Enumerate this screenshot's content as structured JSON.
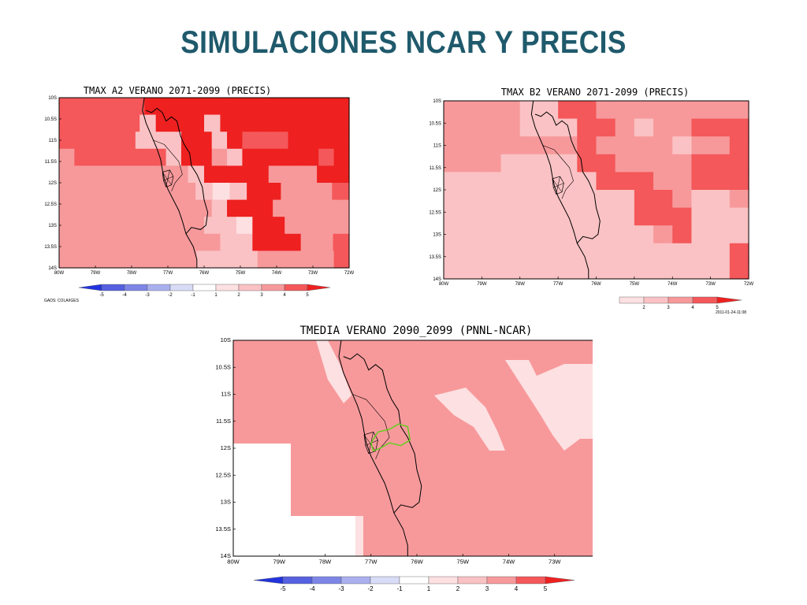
{
  "slide": {
    "title": "SIMULACIONES  NCAR Y PRECIS"
  },
  "colors": {
    "c5": "#ee2020",
    "c4": "#f4585a",
    "c3": "#f7999b",
    "c2": "#fac2c4",
    "c1": "#fde0e1",
    "c0": "#ffffff",
    "n1": "#d8dcf6",
    "n2": "#aab0ee",
    "n3": "#7d86e6",
    "n4": "#5561e0",
    "n5": "#2233dd",
    "title": "#1f5a6c",
    "pnnl_contour": "#66cc22"
  },
  "map_a2": {
    "title": "TMAX A2 VERANO 2071-2099 (PRECIS)",
    "lat_labels": [
      "10S",
      "10.5S",
      "11S",
      "11.5S",
      "12S",
      "12.5S",
      "13S",
      "13.5S",
      "14S"
    ],
    "lon_labels": [
      "80W",
      "79W",
      "78W",
      "77W",
      "76W",
      "75W",
      "74W",
      "73W",
      "72W"
    ],
    "grid": [
      "44444555555555555",
      "444442555255555555",
      "4444422255254445555",
      "3444444255325555545",
      "333333332555533355",
      "33333333212553334",
      "3333333333255533333",
      "333333333221553333",
      "333333333322555334",
      "3333333332222333334"
    ],
    "legend": {
      "labels": [
        "-5",
        "-4",
        "-3",
        "-2",
        "-1",
        "1",
        "2",
        "3",
        "4",
        "5"
      ]
    },
    "footer": "GADS: COLA/IGES"
  },
  "map_b2": {
    "title": "TMAX B2 VERANO 2071-2099 (PRECIS)",
    "lat_labels": [
      "10S",
      "10.5S",
      "11S",
      "11.5S",
      "12S",
      "12.5S",
      "13S",
      "13.5S",
      "14S"
    ],
    "lon_labels": [
      "80W",
      "79W",
      "78W",
      "77W",
      "76W",
      "75W",
      "74W",
      "73W",
      "72W"
    ],
    "grid": [
      "3333224433333333",
      "3333222443233444",
      "3333333433332334",
      "3332222443333444",
      "2222222244433444",
      "2222222222443223",
      "2222222222444222",
      "2222222222234222",
      "2222222222222224",
      "2222222222222224"
    ],
    "legend": {
      "labels": [
        "2",
        "3",
        "4",
        "5"
      ]
    },
    "timestamp": "2011-01-24-11:08"
  },
  "map_pnnl": {
    "title": "TMEDIA VERANO 2090_2099 (PNNL-NCAR)",
    "lat_labels": [
      "10S",
      "10.5S",
      "11S",
      "11.5S",
      "12S",
      "12.5S",
      "13S",
      "13.5S",
      "14S"
    ],
    "lon_labels": [
      "80W",
      "79W",
      "78W",
      "77W",
      "76W",
      "75W",
      "74W",
      "73W",
      "72W"
    ],
    "legend": {
      "labels": [
        "-5",
        "-4",
        "-3",
        "-2",
        "-1",
        "1",
        "2",
        "3",
        "4",
        "5"
      ]
    }
  }
}
